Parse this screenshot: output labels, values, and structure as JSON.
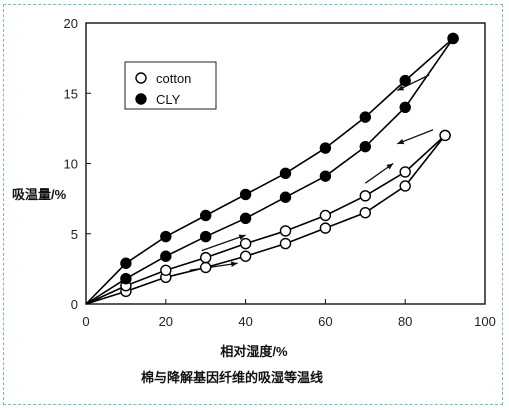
{
  "chart_data": {
    "type": "scatter",
    "title": "棉与降解基因纤维的吸湿等温线",
    "xlabel": "相对湿度/%",
    "ylabel": "吸温量/%",
    "xlim": [
      0,
      100
    ],
    "ylim": [
      0,
      20
    ],
    "xticks": [
      0,
      20,
      40,
      60,
      80,
      100
    ],
    "yticks": [
      0,
      5,
      10,
      15,
      20
    ],
    "legend_position": "upper-left",
    "series": [
      {
        "name": "cotton",
        "marker": "open-circle",
        "color": "#000000",
        "curves": [
          {
            "branch": "adsorption",
            "x": [
              10,
              20,
              30,
              40,
              50,
              60,
              70,
              80,
              90
            ],
            "y": [
              0.9,
              1.9,
              2.6,
              3.4,
              4.3,
              5.4,
              6.5,
              8.4,
              12.0
            ]
          },
          {
            "branch": "desorption",
            "x": [
              10,
              20,
              30,
              40,
              50,
              60,
              70,
              80,
              90
            ],
            "y": [
              1.3,
              2.4,
              3.3,
              4.3,
              5.2,
              6.3,
              7.7,
              9.4,
              12.0
            ]
          }
        ]
      },
      {
        "name": "CLY",
        "marker": "filled-circle",
        "color": "#000000",
        "curves": [
          {
            "branch": "adsorption",
            "x": [
              10,
              20,
              30,
              40,
              50,
              60,
              70,
              80,
              92
            ],
            "y": [
              1.8,
              3.4,
              4.8,
              6.1,
              7.6,
              9.1,
              11.2,
              14.0,
              18.9
            ]
          },
          {
            "branch": "desorption",
            "x": [
              10,
              20,
              30,
              40,
              50,
              60,
              70,
              80,
              92
            ],
            "y": [
              2.9,
              4.8,
              6.3,
              7.8,
              9.3,
              11.1,
              13.3,
              15.9,
              18.9
            ]
          }
        ]
      }
    ],
    "arrows": [
      {
        "from": [
          86,
          16.3
        ],
        "to": [
          78,
          15.2
        ]
      },
      {
        "from": [
          29,
          3.8
        ],
        "to": [
          40,
          4.9
        ]
      },
      {
        "from": [
          70,
          8.6
        ],
        "to": [
          77,
          10.0
        ]
      },
      {
        "from": [
          26,
          2.4
        ],
        "to": [
          38,
          2.9
        ]
      },
      {
        "from": [
          87,
          12.4
        ],
        "to": [
          78,
          11.4
        ]
      }
    ]
  }
}
